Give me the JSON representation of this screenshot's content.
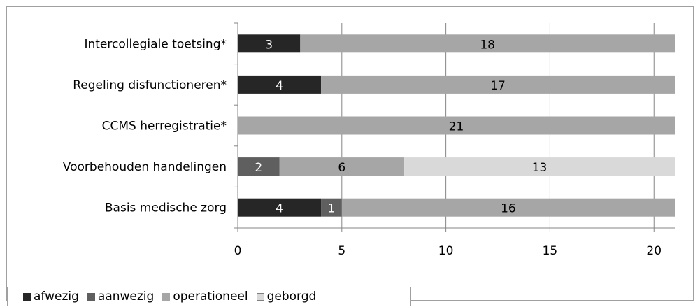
{
  "chart_data": {
    "type": "bar",
    "orientation": "horizontal",
    "stacked": true,
    "categories": [
      "Intercollegiale toetsing*",
      "Regeling disfunctioneren*",
      "CCMS herregistratie*",
      "Voorbehouden handelingen",
      "Basis medische zorg"
    ],
    "series": [
      {
        "name": "afwezig",
        "color": "#262626",
        "label_color": "#ffffff",
        "values": [
          3,
          4,
          0,
          0,
          4
        ]
      },
      {
        "name": "aanwezig",
        "color": "#5f5f5f",
        "label_color": "#ffffff",
        "values": [
          0,
          0,
          0,
          2,
          1
        ]
      },
      {
        "name": "operationeel",
        "color": "#a6a6a6",
        "label_color": "#000000",
        "values": [
          18,
          17,
          21,
          6,
          16
        ]
      },
      {
        "name": "geborgd",
        "color": "#d9d9d9",
        "label_color": "#000000",
        "values": [
          0,
          0,
          0,
          13,
          0
        ]
      }
    ],
    "xlim": [
      0,
      21
    ],
    "xticks": [
      "0",
      "5",
      "10",
      "15",
      "20"
    ],
    "grid": true,
    "legend_position": "bottom-left"
  }
}
